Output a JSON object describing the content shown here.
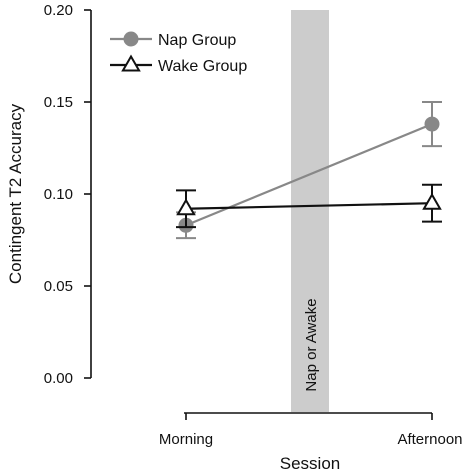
{
  "chart_data": {
    "type": "line",
    "categories": [
      "Morning",
      "Afternoon"
    ],
    "xlabel": "Session",
    "ylabel": "Contingent T2 Accuracy",
    "ylim": [
      0,
      0.2
    ],
    "yticks": [
      "0.00",
      "0.05",
      "0.10",
      "0.15",
      "0.20"
    ],
    "grid": false,
    "legend_position": "top-left",
    "band": {
      "label": "Nap or Awake",
      "color": "#cccccc"
    },
    "series": [
      {
        "name": "Nap Group",
        "marker": "circle",
        "color": "#888888",
        "values": [
          0.083,
          0.138
        ],
        "error": [
          0.007,
          0.012
        ]
      },
      {
        "name": "Wake Group",
        "marker": "triangle-open",
        "color": "#111111",
        "values": [
          0.092,
          0.095
        ],
        "error": [
          0.01,
          0.01
        ]
      }
    ]
  }
}
